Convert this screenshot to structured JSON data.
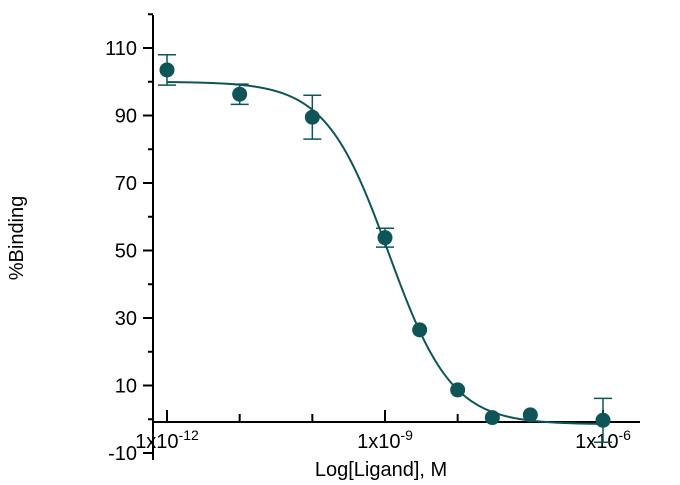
{
  "chart_data": {
    "type": "scatter",
    "xlabel": "Log[Ligand],  M",
    "ylabel": "%Binding",
    "x_scale": "log",
    "xlim": [
      5e-13,
      3e-06
    ],
    "ylim": [
      -10,
      120
    ],
    "y_ticks": [
      -10,
      10,
      30,
      50,
      70,
      90,
      110
    ],
    "x_tick_labels": [
      {
        "value": 1e-12,
        "base": "1x10",
        "exp": "-12"
      },
      {
        "value": 1e-09,
        "base": "1x10",
        "exp": "-9"
      },
      {
        "value": 1e-06,
        "base": "1x10",
        "exp": "-6"
      }
    ],
    "x_minor_ticks": [
      1e-11,
      1e-10,
      1e-08,
      1e-07
    ],
    "series": [
      {
        "points": [
          {
            "x": 1e-12,
            "y": 103.5,
            "err": 4.5
          },
          {
            "x": 1e-11,
            "y": 96.3,
            "err": 3.0
          },
          {
            "x": 1e-10,
            "y": 89.5,
            "err": 6.5
          },
          {
            "x": 1e-09,
            "y": 53.8,
            "err": 2.8
          },
          {
            "x": 3e-09,
            "y": 26.5,
            "err": 0
          },
          {
            "x": 1e-08,
            "y": 8.7,
            "err": 0
          },
          {
            "x": 3e-08,
            "y": 0.5,
            "err": 0
          },
          {
            "x": 1e-07,
            "y": 1.3,
            "err": 0
          },
          {
            "x": 1e-06,
            "y": -0.3,
            "err": 6.5
          }
        ]
      }
    ],
    "fit": {
      "model": "four-parameter logistic",
      "top": 100,
      "bottom": -1.5,
      "log_ic50": -8.95,
      "hill_slope": -1.0
    },
    "colors": {
      "series": "#0f5456",
      "axis": "#000000"
    }
  }
}
